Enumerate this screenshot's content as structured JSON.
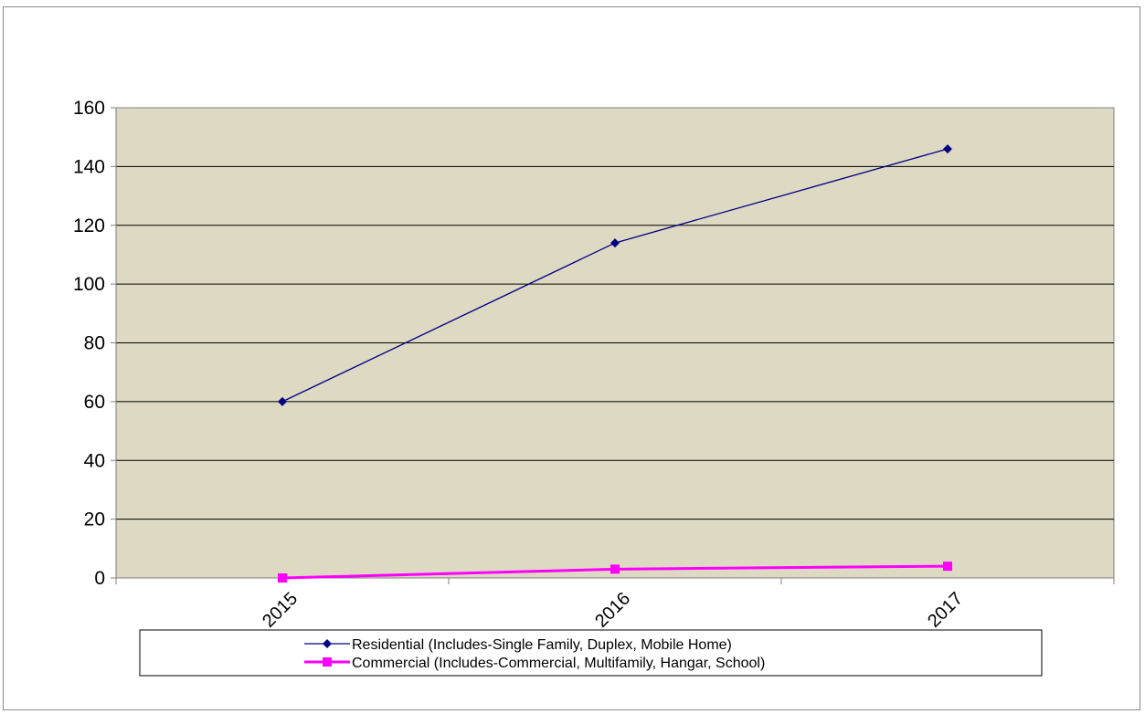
{
  "chart_data": {
    "type": "line",
    "categories": [
      "2015",
      "2016",
      "2017"
    ],
    "ylim": [
      0,
      160
    ],
    "yticks": [
      0,
      20,
      40,
      60,
      80,
      100,
      120,
      140,
      160
    ],
    "grid": true,
    "plot_background": "#DDD9C3",
    "legend_position": "bottom",
    "series": [
      {
        "name": "Residential (Includes-Single Family, Duplex, Mobile Home)",
        "values": [
          60,
          114,
          146
        ],
        "color": "#000080",
        "marker": "diamond"
      },
      {
        "name": "Commercial (Includes-Commercial, Multifamily, Hangar, School)",
        "values": [
          0,
          3,
          4
        ],
        "color": "#FF00FF",
        "marker": "square"
      }
    ]
  }
}
